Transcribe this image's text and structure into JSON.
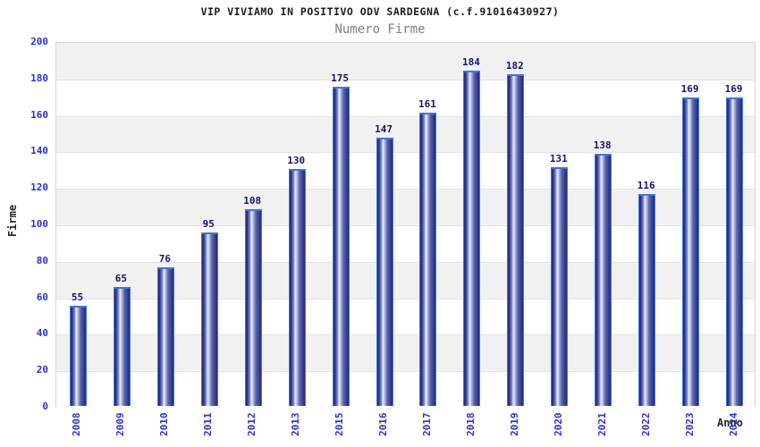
{
  "header": {
    "title": "VIP VIVIAMO IN POSITIVO ODV SARDEGNA (c.f.91016430927)",
    "subtitle": "Numero Firme"
  },
  "chart_data": {
    "type": "bar",
    "title": "VIP VIVIAMO IN POSITIVO ODV SARDEGNA (c.f.91016430927)",
    "subtitle": "Numero Firme",
    "categories": [
      "2008",
      "2009",
      "2010",
      "2011",
      "2012",
      "2013",
      "2015",
      "2016",
      "2017",
      "2018",
      "2019",
      "2020",
      "2021",
      "2022",
      "2023",
      "2024"
    ],
    "values": [
      55,
      65,
      76,
      95,
      108,
      130,
      175,
      147,
      161,
      184,
      182,
      131,
      138,
      116,
      169,
      169
    ],
    "xlabel": "Anno",
    "ylabel": "Firme",
    "ylim": [
      0,
      200
    ],
    "ytick_step": 20,
    "legend": "none",
    "grid": "horizontal-alternating-bands",
    "colors": {
      "bar_dark": "#232878",
      "bar_highlight": "#edf0fa",
      "bar_outline": "#3b76e3",
      "tick_label": "#2d2fd0",
      "value_label": "#15156b",
      "band_gray": "#f1f1f1",
      "band_white": "#ffffff",
      "plot_border": "#d4d4d4",
      "title_color": "#1b1b22",
      "subtitle_color": "#7f7f7f"
    }
  }
}
